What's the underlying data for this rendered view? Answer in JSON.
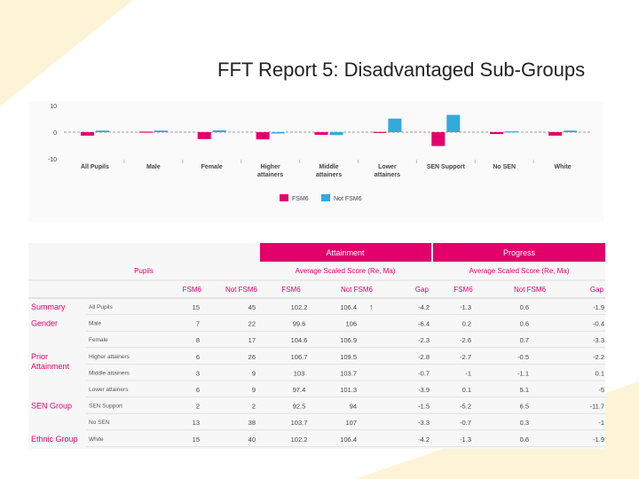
{
  "slide_title": "FFT Report 5: Disadvantaged Sub-Groups",
  "colors": {
    "fsm6": "#e2006a",
    "not_fsm6": "#33a9de",
    "header_bg": "#e2006a"
  },
  "chart_data": [
    {
      "type": "bar",
      "categories": [
        "All Pupils",
        "Male",
        "Female",
        "Higher attainers",
        "Middle attainers",
        "Lower attainers",
        "SEN Support",
        "No SEN",
        "White"
      ],
      "series": [
        {
          "name": "FSM6",
          "values": [
            -1.3,
            0.2,
            -2.6,
            -2.7,
            -1,
            0.1,
            -5.2,
            -0.7,
            -1.3
          ]
        },
        {
          "name": "Not FSM6",
          "values": [
            0.6,
            0.6,
            0.7,
            -0.5,
            -1.1,
            5.1,
            6.5,
            0.3,
            0.6
          ]
        }
      ],
      "ylim": [
        -10,
        10
      ],
      "yticks": [
        "10",
        "0",
        "-10"
      ],
      "legend": "bottom"
    },
    {
      "type": "table",
      "headers": {
        "pupils": "Pupils",
        "attainment": "Attainment",
        "attainment_sub": "Average Scaled Score (Re, Ma)",
        "progress": "Progress",
        "progress_sub": "Average Scaled Score (Re, Ma)",
        "columns": [
          "FSM6",
          "Not FSM6",
          "FSM6",
          "Not FSM6",
          "Gap",
          "FSM6",
          "Not FSM6",
          "Gap"
        ]
      },
      "arrow": "↑",
      "rows": [
        {
          "group": "Summary",
          "label": "All Pupils",
          "values": [
            "15",
            "45",
            "102.2",
            "106.4",
            "-4.2",
            "-1.3",
            "0.6",
            "-1.9"
          ]
        },
        {
          "group": "Gender",
          "label": "Male",
          "values": [
            "7",
            "22",
            "99.6",
            "106",
            "-6.4",
            "0.2",
            "0.6",
            "-0.4"
          ]
        },
        {
          "group": "",
          "label": "Female",
          "values": [
            "8",
            "17",
            "104.6",
            "106.9",
            "-2.3",
            "-2.6",
            "0.7",
            "-3.3"
          ]
        },
        {
          "group": "Prior Attainment",
          "label": "Higher attainers",
          "values": [
            "6",
            "26",
            "106.7",
            "109.5",
            "-2.8",
            "-2.7",
            "-0.5",
            "-2.2"
          ]
        },
        {
          "group": "",
          "label": "Middle attainers",
          "values": [
            "3",
            "9",
            "103",
            "103.7",
            "-0.7",
            "-1",
            "-1.1",
            "0.1"
          ]
        },
        {
          "group": "",
          "label": "Lower attainers",
          "values": [
            "6",
            "9",
            "97.4",
            "101.3",
            "-3.9",
            "0.1",
            "5.1",
            "-5"
          ]
        },
        {
          "group": "SEN Group",
          "label": "SEN Support",
          "values": [
            "2",
            "2",
            "92.5",
            "94",
            "-1.5",
            "-5.2",
            "6.5",
            "-11.7"
          ]
        },
        {
          "group": "",
          "label": "No SEN",
          "values": [
            "13",
            "38",
            "103.7",
            "107",
            "-3.3",
            "-0.7",
            "0.3",
            "-1"
          ]
        },
        {
          "group": "Ethnic Group",
          "label": "White",
          "values": [
            "15",
            "40",
            "102.2",
            "106.4",
            "-4.2",
            "-1.3",
            "0.6",
            "-1.9"
          ]
        }
      ]
    }
  ]
}
